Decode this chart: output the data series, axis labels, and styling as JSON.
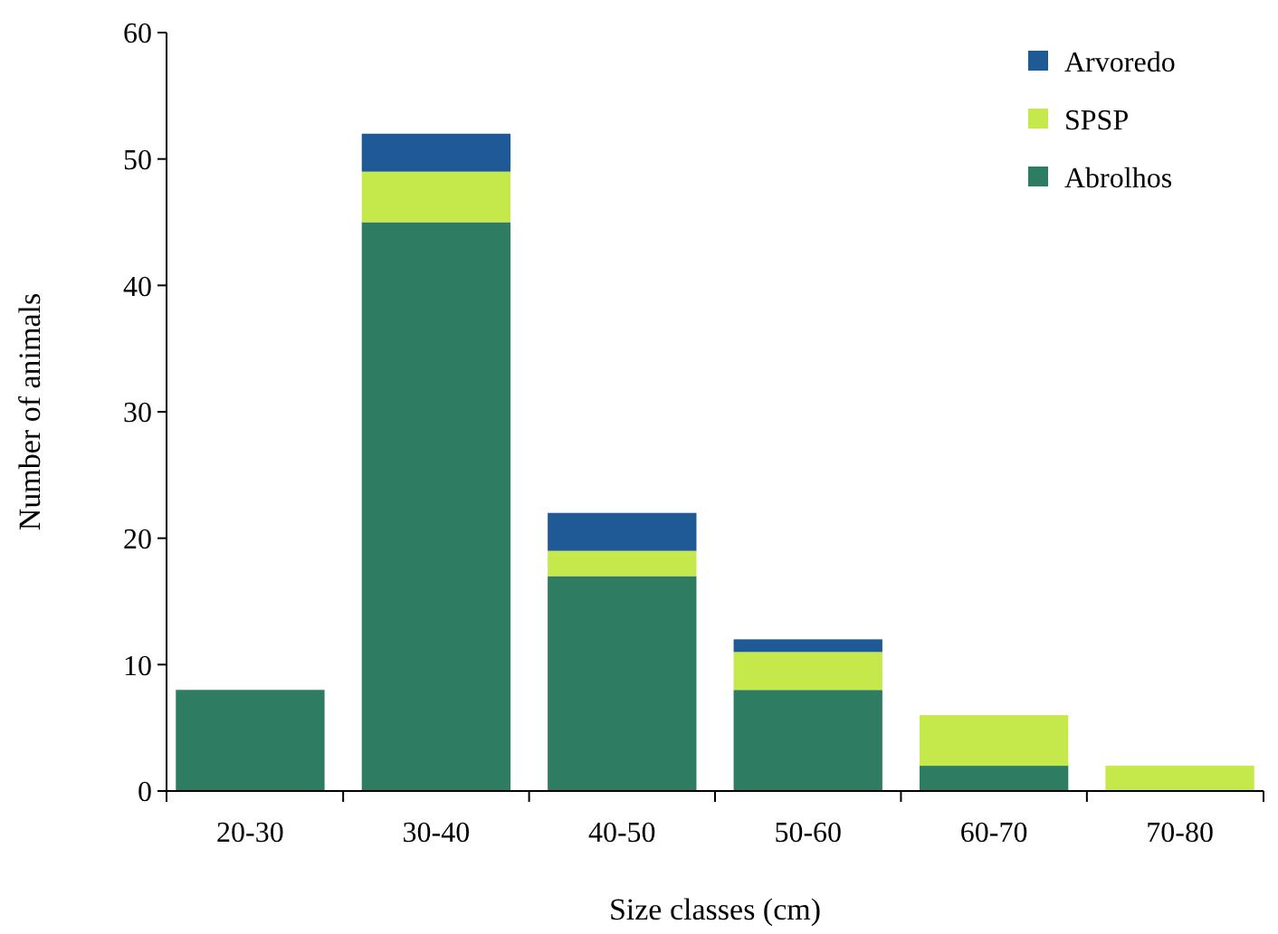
{
  "chart_data": {
    "type": "bar",
    "stacked": true,
    "xlabel": "Size classes (cm)",
    "ylabel": "Number of animals",
    "categories": [
      "20-30",
      "30-40",
      "40-50",
      "50-60",
      "60-70",
      "70-80"
    ],
    "series": [
      {
        "name": "Abrolhos",
        "color": "#2e7d62",
        "values": [
          8,
          45,
          17,
          8,
          2,
          0
        ]
      },
      {
        "name": "SPSP",
        "color": "#c5e84a",
        "values": [
          0,
          4,
          2,
          3,
          4,
          2
        ]
      },
      {
        "name": "Arvoredo",
        "color": "#1f5a96",
        "values": [
          0,
          3,
          3,
          1,
          0,
          0
        ]
      }
    ],
    "ylim": [
      0,
      60
    ],
    "yticks": [
      0,
      10,
      20,
      30,
      40,
      50,
      60
    ],
    "grid": false,
    "legend": "top right"
  }
}
